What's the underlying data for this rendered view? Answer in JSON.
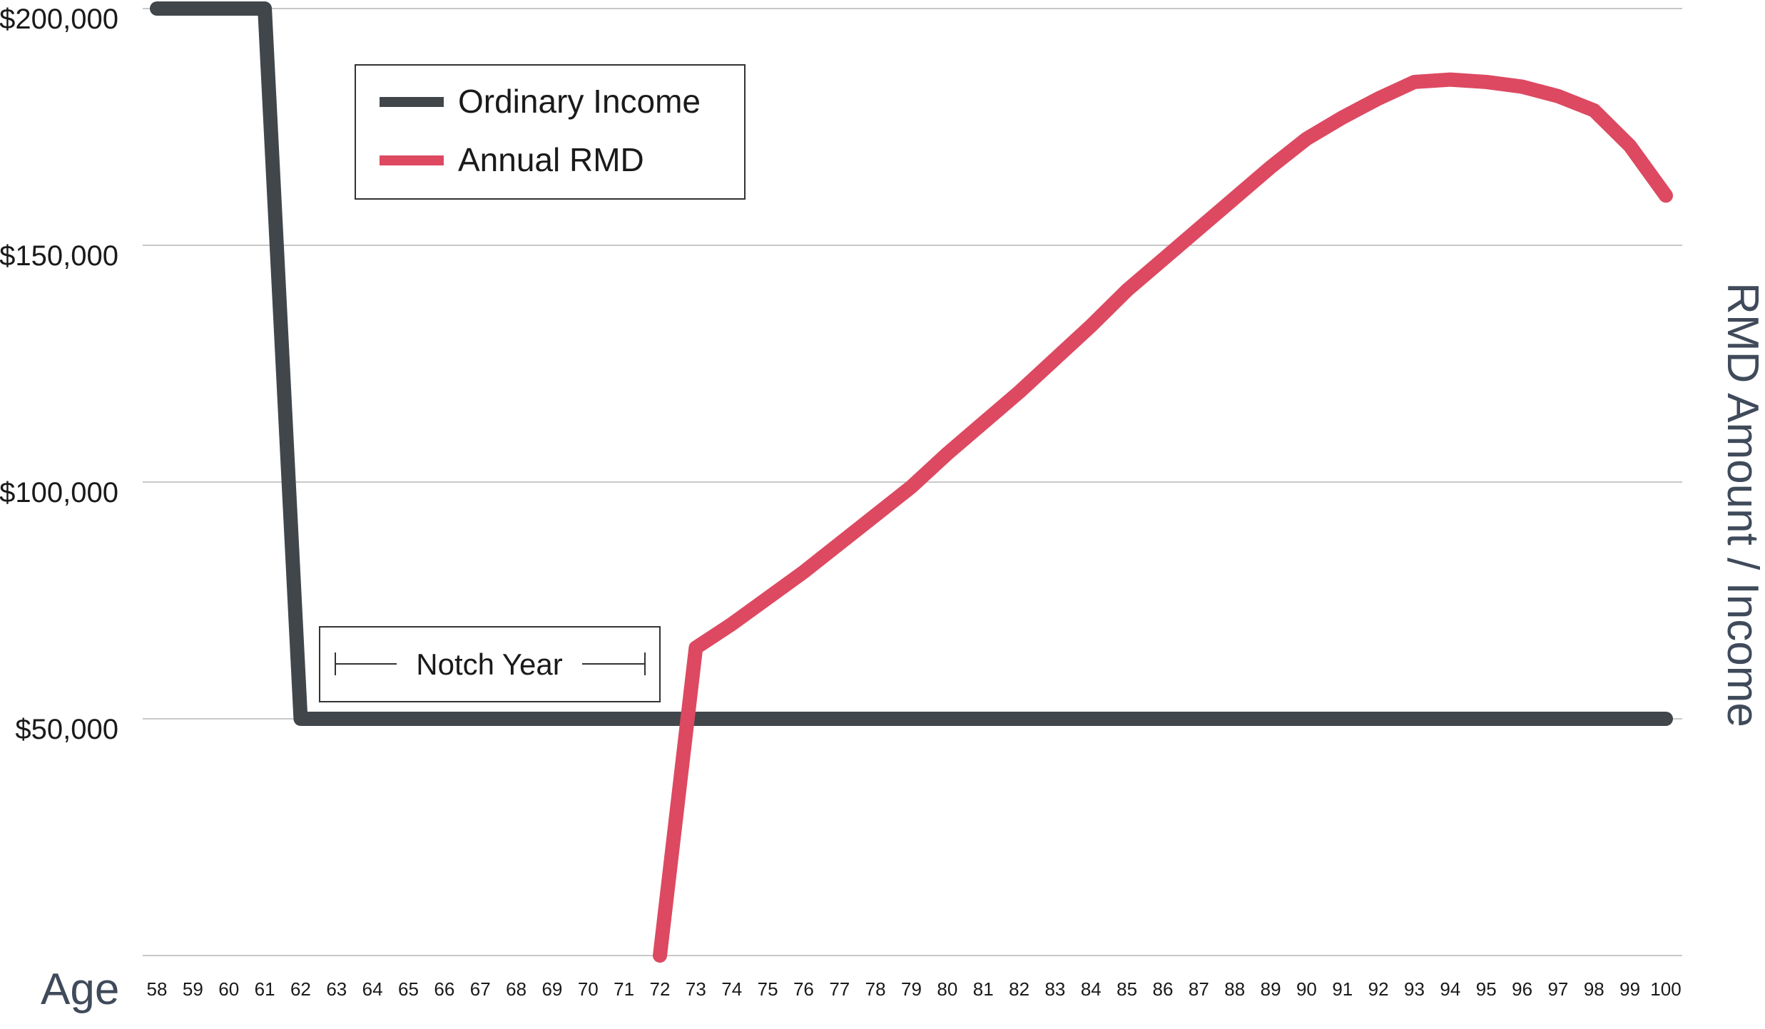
{
  "chart_data": {
    "type": "line",
    "xlabel": "Age",
    "ylabel": "RMD Amount / Income",
    "ylim": [
      0,
      200000
    ],
    "y_ticks": [
      {
        "value": 200000,
        "label": "$200,000"
      },
      {
        "value": 150000,
        "label": "$150,000"
      },
      {
        "value": 100000,
        "label": "$100,000"
      },
      {
        "value": 50000,
        "label": "$50,000"
      }
    ],
    "grid": true,
    "legend_position": "top-left",
    "x": [
      58,
      59,
      60,
      61,
      62,
      63,
      64,
      65,
      66,
      67,
      68,
      69,
      70,
      71,
      72,
      73,
      74,
      75,
      76,
      77,
      78,
      79,
      80,
      81,
      82,
      83,
      84,
      85,
      86,
      87,
      88,
      89,
      90,
      91,
      92,
      93,
      94,
      95,
      96,
      97,
      98,
      99,
      100
    ],
    "series": [
      {
        "name": "Ordinary Income",
        "color": "#41464b",
        "values": [
          200000,
          200000,
          200000,
          200000,
          50000,
          50000,
          50000,
          50000,
          50000,
          50000,
          50000,
          50000,
          50000,
          50000,
          50000,
          50000,
          50000,
          50000,
          50000,
          50000,
          50000,
          50000,
          50000,
          50000,
          50000,
          50000,
          50000,
          50000,
          50000,
          50000,
          50000,
          50000,
          50000,
          50000,
          50000,
          50000,
          50000,
          50000,
          50000,
          50000,
          50000,
          50000,
          50000
        ]
      },
      {
        "name": "Annual RMD",
        "color": "#dd4961",
        "values": [
          null,
          null,
          null,
          null,
          null,
          null,
          null,
          null,
          null,
          null,
          null,
          null,
          null,
          null,
          0,
          65000,
          70000,
          75500,
          81000,
          87000,
          93000,
          99000,
          106000,
          112500,
          119000,
          126000,
          133000,
          140500,
          147000,
          153500,
          160000,
          166500,
          172500,
          177000,
          181000,
          184500,
          185000,
          184500,
          183500,
          181500,
          178500,
          171000,
          160500
        ]
      }
    ],
    "annotations": [
      {
        "label": "Notch Year",
        "x_start": 62,
        "x_end": 72
      }
    ]
  }
}
